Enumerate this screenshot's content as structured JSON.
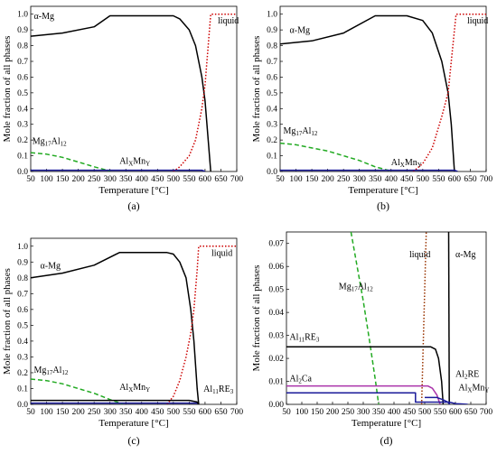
{
  "chart_data": [
    {
      "id": "a",
      "type": "line",
      "caption": "(a)",
      "xlabel": "Temperature [°C]",
      "ylabel": "Mole fraction of all phases",
      "xlim": [
        50,
        700
      ],
      "ylim": [
        0,
        1.05
      ],
      "xticks": [
        50,
        100,
        150,
        200,
        250,
        300,
        350,
        400,
        450,
        500,
        550,
        600,
        650,
        700
      ],
      "yticks": [
        "0.0",
        "0.1",
        "0.2",
        "0.3",
        "0.4",
        "0.5",
        "0.6",
        "0.7",
        "0.8",
        "0.9",
        "1.0"
      ],
      "grid": false,
      "series": [
        {
          "name": "α-Mg",
          "color": "#000000",
          "dash": "solid",
          "points": [
            [
              50,
              0.86
            ],
            [
              150,
              0.88
            ],
            [
              250,
              0.92
            ],
            [
              300,
              0.99
            ],
            [
              450,
              0.99
            ],
            [
              500,
              0.99
            ],
            [
              520,
              0.97
            ],
            [
              550,
              0.9
            ],
            [
              570,
              0.8
            ],
            [
              590,
              0.6
            ],
            [
              600,
              0.45
            ],
            [
              610,
              0.2
            ],
            [
              618,
              0
            ]
          ]
        },
        {
          "name": "liquid",
          "color": "#cc0000",
          "dash": "dot",
          "points": [
            [
              500,
              0
            ],
            [
              520,
              0.03
            ],
            [
              550,
              0.1
            ],
            [
              570,
              0.2
            ],
            [
              590,
              0.4
            ],
            [
              600,
              0.55
            ],
            [
              610,
              0.8
            ],
            [
              618,
              1.0
            ],
            [
              700,
              1.0
            ]
          ]
        },
        {
          "name": "Mg17Al12",
          "color": "#22aa22",
          "dash": "dash",
          "points": [
            [
              50,
              0.12
            ],
            [
              100,
              0.11
            ],
            [
              150,
              0.09
            ],
            [
              200,
              0.06
            ],
            [
              250,
              0.03
            ],
            [
              300,
              0.003
            ]
          ]
        },
        {
          "name": "AlxMnY",
          "color": "#1a1a99",
          "dash": "solid",
          "points": [
            [
              50,
              0.008
            ],
            [
              590,
              0.008
            ],
            [
              600,
              0
            ]
          ]
        }
      ],
      "annotations": [
        {
          "main": "α-Mg",
          "sub": "",
          "x": 60,
          "y": 0.97
        },
        {
          "main": "liquid",
          "sub": "",
          "x": 640,
          "y": 0.94
        },
        {
          "parts": [
            [
              "Mg",
              ""
            ],
            [
              "17",
              "sub"
            ],
            [
              "Al",
              ""
            ],
            [
              "12",
              "sub"
            ]
          ],
          "x": 55,
          "y": 0.175
        },
        {
          "parts": [
            [
              "Al",
              ""
            ],
            [
              "X",
              "sub"
            ],
            [
              "Mn",
              ""
            ],
            [
              "Y",
              "sub"
            ]
          ],
          "x": 330,
          "y": 0.05
        }
      ]
    },
    {
      "id": "b",
      "type": "line",
      "caption": "(b)",
      "xlabel": "Temperature [°C]",
      "ylabel": "Mole fraction of all phases",
      "xlim": [
        50,
        700
      ],
      "ylim": [
        0,
        1.05
      ],
      "xticks": [
        50,
        100,
        150,
        200,
        250,
        300,
        350,
        400,
        450,
        500,
        550,
        600,
        650,
        700
      ],
      "yticks": [
        "0.0",
        "0.1",
        "0.2",
        "0.3",
        "0.4",
        "0.5",
        "0.6",
        "0.7",
        "0.8",
        "0.9",
        "1.0"
      ],
      "grid": false,
      "series": [
        {
          "name": "α-Mg",
          "color": "#000000",
          "dash": "solid",
          "points": [
            [
              50,
              0.81
            ],
            [
              150,
              0.83
            ],
            [
              250,
              0.88
            ],
            [
              350,
              0.99
            ],
            [
              450,
              0.99
            ],
            [
              500,
              0.96
            ],
            [
              530,
              0.88
            ],
            [
              560,
              0.7
            ],
            [
              580,
              0.5
            ],
            [
              590,
              0.3
            ],
            [
              600,
              0
            ]
          ]
        },
        {
          "name": "liquid",
          "color": "#cc0000",
          "dash": "dot",
          "points": [
            [
              470,
              0
            ],
            [
              500,
              0.05
            ],
            [
              530,
              0.15
            ],
            [
              560,
              0.35
            ],
            [
              580,
              0.5
            ],
            [
              590,
              0.7
            ],
            [
              605,
              1.0
            ],
            [
              700,
              1.0
            ]
          ]
        },
        {
          "name": "Mg17Al12",
          "color": "#22aa22",
          "dash": "dash",
          "points": [
            [
              50,
              0.18
            ],
            [
              100,
              0.17
            ],
            [
              150,
              0.15
            ],
            [
              200,
              0.13
            ],
            [
              250,
              0.1
            ],
            [
              300,
              0.07
            ],
            [
              350,
              0.03
            ],
            [
              400,
              0.003
            ]
          ]
        },
        {
          "name": "AlxMnY",
          "color": "#1a1a99",
          "dash": "solid",
          "points": [
            [
              50,
              0.008
            ],
            [
              600,
              0.008
            ],
            [
              610,
              0
            ]
          ]
        }
      ],
      "annotations": [
        {
          "main": "α-Mg",
          "sub": "",
          "x": 80,
          "y": 0.88
        },
        {
          "main": "liquid",
          "sub": "",
          "x": 640,
          "y": 0.94
        },
        {
          "parts": [
            [
              "Mg",
              ""
            ],
            [
              "17",
              "sub"
            ],
            [
              "Al",
              ""
            ],
            [
              "12",
              "sub"
            ]
          ],
          "x": 60,
          "y": 0.24
        },
        {
          "parts": [
            [
              "Al",
              ""
            ],
            [
              "X",
              "sub"
            ],
            [
              "Mn",
              ""
            ],
            [
              "Y",
              "sub"
            ]
          ],
          "x": 400,
          "y": 0.04
        }
      ]
    },
    {
      "id": "c",
      "type": "line",
      "caption": "(c)",
      "xlabel": "Temperature [°C]",
      "ylabel": "Mole fraction of all phases",
      "xlim": [
        50,
        700
      ],
      "ylim": [
        0,
        1.05
      ],
      "xticks": [
        50,
        100,
        150,
        200,
        250,
        300,
        350,
        400,
        450,
        500,
        550,
        600,
        650,
        700
      ],
      "yticks": [
        "0.0",
        "0.1",
        "0.2",
        "0.3",
        "0.4",
        "0.5",
        "0.6",
        "0.7",
        "0.8",
        "0.9",
        "1.0"
      ],
      "grid": false,
      "series": [
        {
          "name": "α-Mg",
          "color": "#000000",
          "dash": "solid",
          "points": [
            [
              50,
              0.8
            ],
            [
              150,
              0.83
            ],
            [
              250,
              0.88
            ],
            [
              330,
              0.96
            ],
            [
              480,
              0.96
            ],
            [
              500,
              0.95
            ],
            [
              520,
              0.9
            ],
            [
              540,
              0.8
            ],
            [
              555,
              0.6
            ],
            [
              565,
              0.4
            ],
            [
              575,
              0.1
            ],
            [
              580,
              0
            ]
          ]
        },
        {
          "name": "liquid",
          "color": "#cc0000",
          "dash": "dot",
          "points": [
            [
              480,
              0
            ],
            [
              500,
              0.05
            ],
            [
              520,
              0.15
            ],
            [
              540,
              0.3
            ],
            [
              555,
              0.45
            ],
            [
              565,
              0.6
            ],
            [
              575,
              0.85
            ],
            [
              580,
              1.0
            ],
            [
              700,
              1.0
            ]
          ]
        },
        {
          "name": "Mg17Al12",
          "color": "#22aa22",
          "dash": "dash",
          "points": [
            [
              50,
              0.16
            ],
            [
              100,
              0.15
            ],
            [
              150,
              0.13
            ],
            [
              200,
              0.1
            ],
            [
              250,
              0.07
            ],
            [
              300,
              0.03
            ],
            [
              340,
              0.003
            ]
          ]
        },
        {
          "name": "AlxMnY",
          "color": "#1a1a99",
          "dash": "solid",
          "points": [
            [
              50,
              0.008
            ],
            [
              575,
              0.008
            ],
            [
              580,
              0
            ]
          ]
        },
        {
          "name": "Al11RE3",
          "color": "#000000",
          "dash": "solid",
          "points": [
            [
              50,
              0.025
            ],
            [
              550,
              0.025
            ],
            [
              575,
              0.015
            ],
            [
              580,
              0
            ]
          ]
        }
      ],
      "annotations": [
        {
          "main": "α-Mg",
          "sub": "",
          "x": 80,
          "y": 0.86
        },
        {
          "main": "liquid",
          "sub": "",
          "x": 620,
          "y": 0.94
        },
        {
          "parts": [
            [
              "Mg",
              ""
            ],
            [
              "17",
              "sub"
            ],
            [
              "Al",
              ""
            ],
            [
              "12",
              "sub"
            ]
          ],
          "x": 60,
          "y": 0.2
        },
        {
          "parts": [
            [
              "Al",
              ""
            ],
            [
              "X",
              "sub"
            ],
            [
              "Mn",
              ""
            ],
            [
              "Y",
              "sub"
            ]
          ],
          "x": 330,
          "y": 0.09
        },
        {
          "parts": [
            [
              "Al",
              ""
            ],
            [
              "11",
              "sub"
            ],
            [
              "RE",
              ""
            ],
            [
              "3",
              "sub"
            ]
          ],
          "x": 595,
          "y": 0.08
        }
      ]
    },
    {
      "id": "d",
      "type": "line",
      "caption": "(d)",
      "xlabel": "Temperature [°C]",
      "ylabel": "Mole fraction of all phases",
      "xlim": [
        50,
        700
      ],
      "ylim": [
        0,
        0.075
      ],
      "xticks": [
        50,
        100,
        150,
        200,
        250,
        300,
        350,
        400,
        450,
        500,
        550,
        600,
        650,
        700
      ],
      "yticks": [
        "0.00",
        "0.01",
        "0.02",
        "0.03",
        "0.04",
        "0.05",
        "0.06",
        "0.07"
      ],
      "grid": false,
      "series": [
        {
          "name": "Mg17Al12",
          "color": "#22aa22",
          "dash": "dash",
          "points": [
            [
              260,
              0.075
            ],
            [
              280,
              0.06
            ],
            [
              300,
              0.045
            ],
            [
              320,
              0.028
            ],
            [
              340,
              0.01
            ],
            [
              350,
              0
            ]
          ]
        },
        {
          "name": "liquid",
          "color": "#993300",
          "dash": "dot",
          "points": [
            [
              490,
              0
            ],
            [
              505,
              0.075
            ]
          ]
        },
        {
          "name": "α-Mg",
          "color": "#000000",
          "dash": "solid",
          "points": [
            [
              578,
              0.075
            ],
            [
              580,
              0.0
            ]
          ]
        },
        {
          "name": "Al11RE3",
          "color": "#000000",
          "dash": "solid",
          "points": [
            [
              50,
              0.025
            ],
            [
              520,
              0.025
            ],
            [
              535,
              0.024
            ],
            [
              545,
              0.02
            ],
            [
              555,
              0.01
            ],
            [
              560,
              0
            ]
          ]
        },
        {
          "name": "Al2Ca",
          "color": "#aa33aa",
          "dash": "solid",
          "points": [
            [
              50,
              0.008
            ],
            [
              510,
              0.008
            ],
            [
              525,
              0.007
            ],
            [
              540,
              0.004
            ],
            [
              550,
              0
            ]
          ]
        },
        {
          "name": "AlxMnY",
          "color": "#1a1a99",
          "dash": "solid",
          "points": [
            [
              50,
              0.005
            ],
            [
              470,
              0.005
            ],
            [
              470,
              0.001
            ],
            [
              580,
              0.001
            ],
            [
              600,
              0.0003
            ],
            [
              640,
              0
            ]
          ]
        },
        {
          "name": "Al2RE",
          "color": "#1a1a99",
          "dash": "solid",
          "points": [
            [
              500,
              0.003
            ],
            [
              540,
              0.003
            ],
            [
              560,
              0.002
            ],
            [
              575,
              0.001
            ],
            [
              582,
              0
            ]
          ]
        }
      ],
      "annotations": [
        {
          "parts": [
            [
              "Mg",
              ""
            ],
            [
              "17",
              "sub"
            ],
            [
              "Al",
              ""
            ],
            [
              "12",
              "sub"
            ]
          ],
          "x": 220,
          "y": 0.05
        },
        {
          "main": "liquid",
          "sub": "",
          "x": 450,
          "y": 0.064
        },
        {
          "main": "α-Mg",
          "sub": "",
          "x": 600,
          "y": 0.064
        },
        {
          "parts": [
            [
              "Al",
              ""
            ],
            [
              "11",
              "sub"
            ],
            [
              "RE",
              ""
            ],
            [
              "3",
              "sub"
            ]
          ],
          "x": 60,
          "y": 0.028
        },
        {
          "parts": [
            [
              "Al",
              ""
            ],
            [
              "2",
              "sub"
            ],
            [
              "Ca",
              ""
            ]
          ],
          "x": 60,
          "y": 0.01
        },
        {
          "parts": [
            [
              "Al",
              ""
            ],
            [
              "2",
              "sub"
            ],
            [
              "RE",
              ""
            ]
          ],
          "x": 600,
          "y": 0.012
        },
        {
          "parts": [
            [
              "Al",
              ""
            ],
            [
              "X",
              "sub"
            ],
            [
              "Mn",
              ""
            ],
            [
              "Y",
              "sub"
            ]
          ],
          "x": 610,
          "y": 0.006
        }
      ]
    }
  ]
}
